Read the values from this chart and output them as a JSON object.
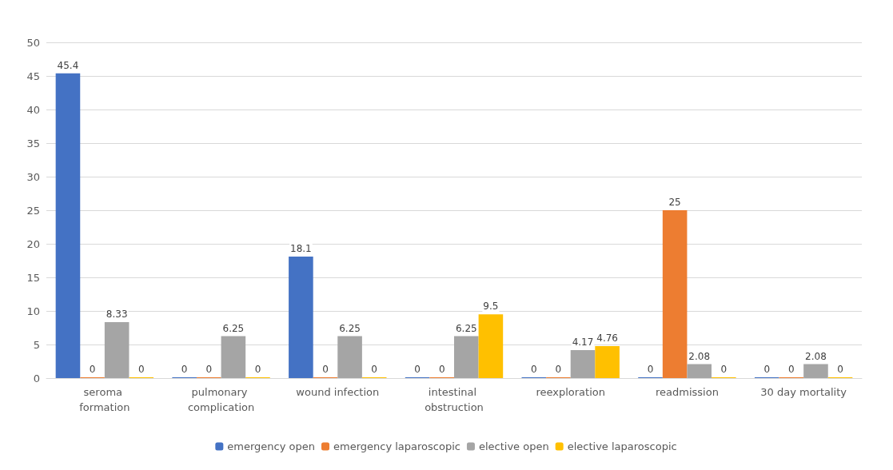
{
  "chart_data": {
    "type": "bar",
    "categories": [
      "seroma formation",
      "pulmonary complication",
      "wound infection",
      "intestinal obstruction",
      "reexploration",
      "readmission",
      "30 day mortality"
    ],
    "series": [
      {
        "name": "emergency open",
        "color": "#4472c4",
        "values": [
          45.4,
          0,
          18.1,
          0,
          0,
          0,
          0
        ]
      },
      {
        "name": "emergency laparoscopic",
        "color": "#ed7d31",
        "values": [
          0,
          0,
          0,
          0,
          0,
          25,
          0
        ]
      },
      {
        "name": "elective open",
        "color": "#a5a5a5",
        "values": [
          8.33,
          6.25,
          6.25,
          6.25,
          4.17,
          2.08,
          2.08
        ]
      },
      {
        "name": "elective laparoscopic",
        "color": "#ffc000",
        "values": [
          0,
          0,
          0,
          9.5,
          4.76,
          0,
          0
        ]
      }
    ],
    "ylim": [
      0,
      50
    ],
    "yticks": [
      0,
      5,
      10,
      15,
      20,
      25,
      30,
      35,
      40,
      45,
      50
    ],
    "grid": "y",
    "legend": "bottom",
    "data_labels": true
  }
}
